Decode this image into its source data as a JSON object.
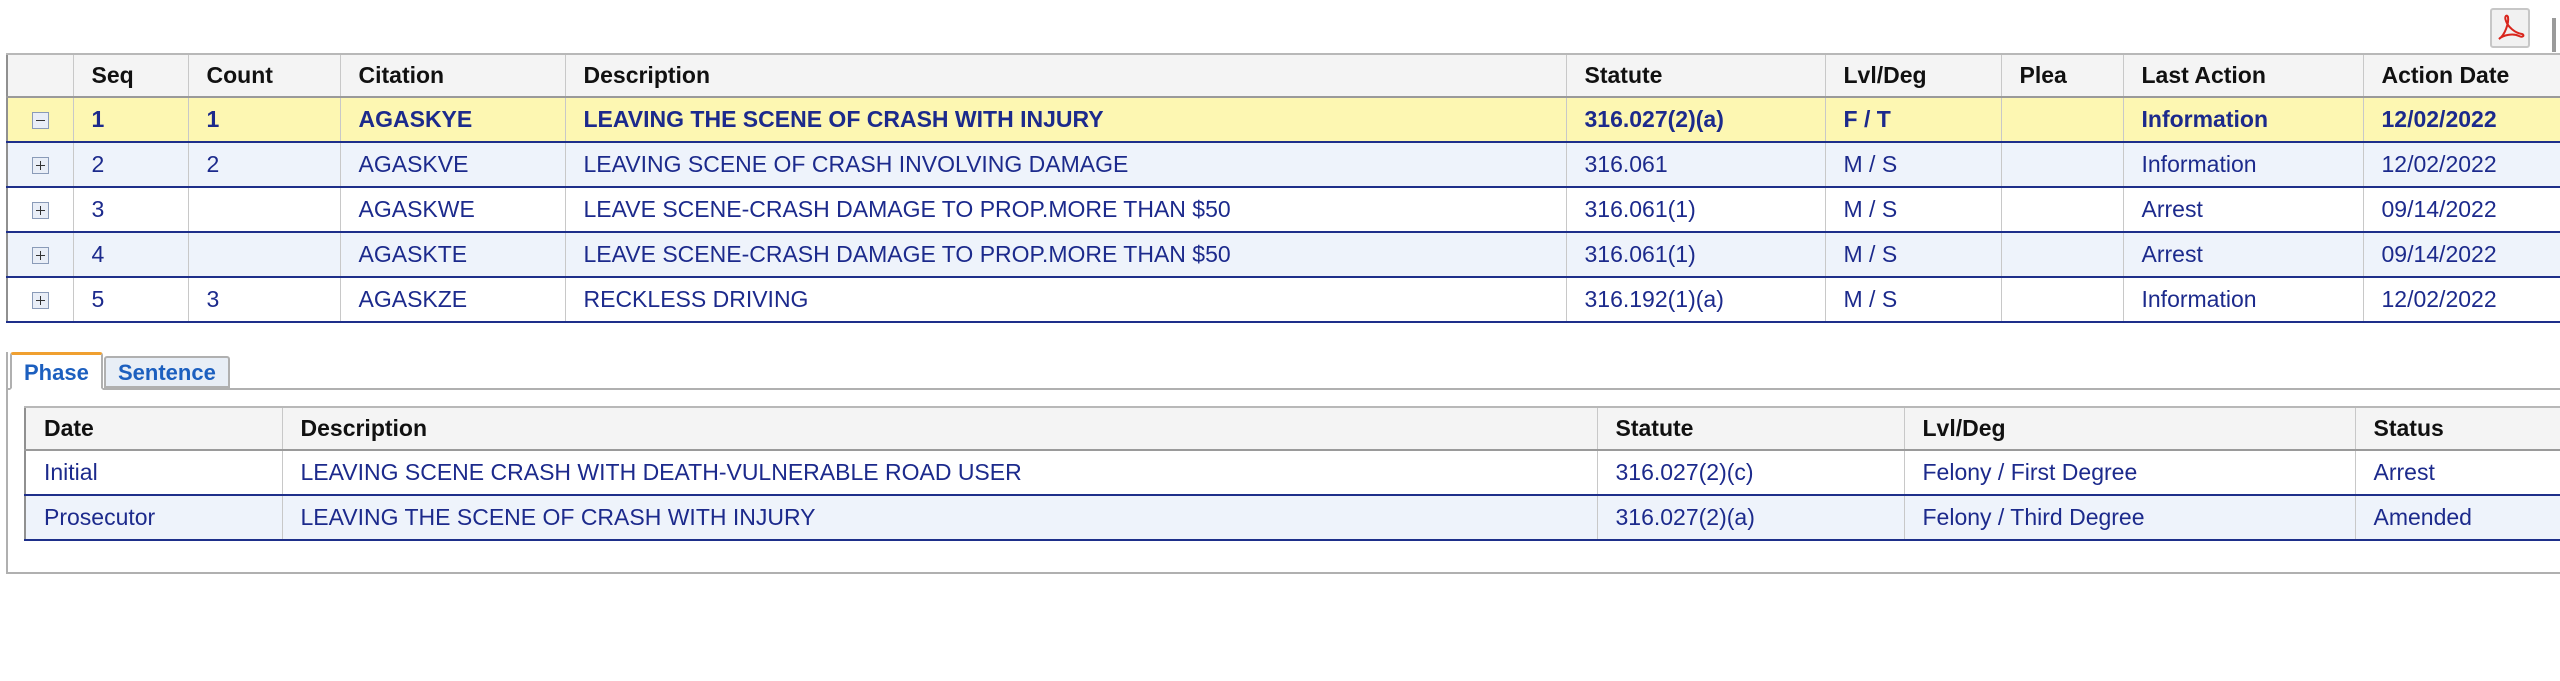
{
  "charges_table": {
    "headers": {
      "expand": "",
      "seq": "Seq",
      "count": "Count",
      "citation": "Citation",
      "description": "Description",
      "statute": "Statute",
      "lvl_deg": "Lvl/Deg",
      "plea": "Plea",
      "last_action": "Last Action",
      "action_date": "Action Date"
    },
    "rows": [
      {
        "seq": "1",
        "count": "1",
        "citation": "AGASKYE",
        "description": "LEAVING THE SCENE OF CRASH WITH INJURY",
        "statute": "316.027(2)(a)",
        "lvl_deg": "F / T",
        "plea": "",
        "last_action": "Information",
        "action_date": "12/02/2022",
        "expander": "minus-box-icon"
      },
      {
        "seq": "2",
        "count": "2",
        "citation": "AGASKVE",
        "description": "LEAVING SCENE OF CRASH INVOLVING DAMAGE",
        "statute": "316.061",
        "lvl_deg": "M / S",
        "plea": "",
        "last_action": "Information",
        "action_date": "12/02/2022",
        "expander": "plus-box-icon"
      },
      {
        "seq": "3",
        "count": "",
        "citation": "AGASKWE",
        "description": "LEAVE SCENE-CRASH DAMAGE TO PROP.MORE THAN $50",
        "statute": "316.061(1)",
        "lvl_deg": "M / S",
        "plea": "",
        "last_action": "Arrest",
        "action_date": "09/14/2022",
        "expander": "plus-box-icon"
      },
      {
        "seq": "4",
        "count": "",
        "citation": "AGASKTE",
        "description": "LEAVE SCENE-CRASH DAMAGE TO PROP.MORE THAN $50",
        "statute": "316.061(1)",
        "lvl_deg": "M / S",
        "plea": "",
        "last_action": "Arrest",
        "action_date": "09/14/2022",
        "expander": "plus-box-icon"
      },
      {
        "seq": "5",
        "count": "3",
        "citation": "AGASKZE",
        "description": "RECKLESS DRIVING",
        "statute": "316.192(1)(a)",
        "lvl_deg": "M / S",
        "plea": "",
        "last_action": "Information",
        "action_date": "12/02/2022",
        "expander": "plus-box-icon"
      }
    ]
  },
  "tabs": [
    {
      "label": "Phase",
      "active": true
    },
    {
      "label": "Sentence",
      "active": false
    }
  ],
  "phase_table": {
    "headers": {
      "date": "Date",
      "description": "Description",
      "statute": "Statute",
      "lvl_deg": "Lvl/Deg",
      "status": "Status"
    },
    "rows": [
      {
        "date": "Initial",
        "description": "LEAVING SCENE CRASH WITH DEATH-VULNERABLE ROAD USER",
        "statute": "316.027(2)(c)",
        "lvl_deg": "Felony / First Degree",
        "status": "Arrest"
      },
      {
        "date": "Prosecutor",
        "description": "LEAVING THE SCENE OF CRASH WITH INJURY",
        "statute": "316.027(2)(a)",
        "lvl_deg": "Felony / Third Degree",
        "status": "Amended"
      }
    ]
  },
  "icons": {
    "export": "pdf-icon",
    "accent": "#d9251c"
  },
  "colors": {
    "text_link": "#1c2a8c",
    "selected_row": "#fdf7b2",
    "alt_row": "#eef3fb",
    "row_border": "#1e2f8a",
    "tab_accent": "#f0a030"
  }
}
